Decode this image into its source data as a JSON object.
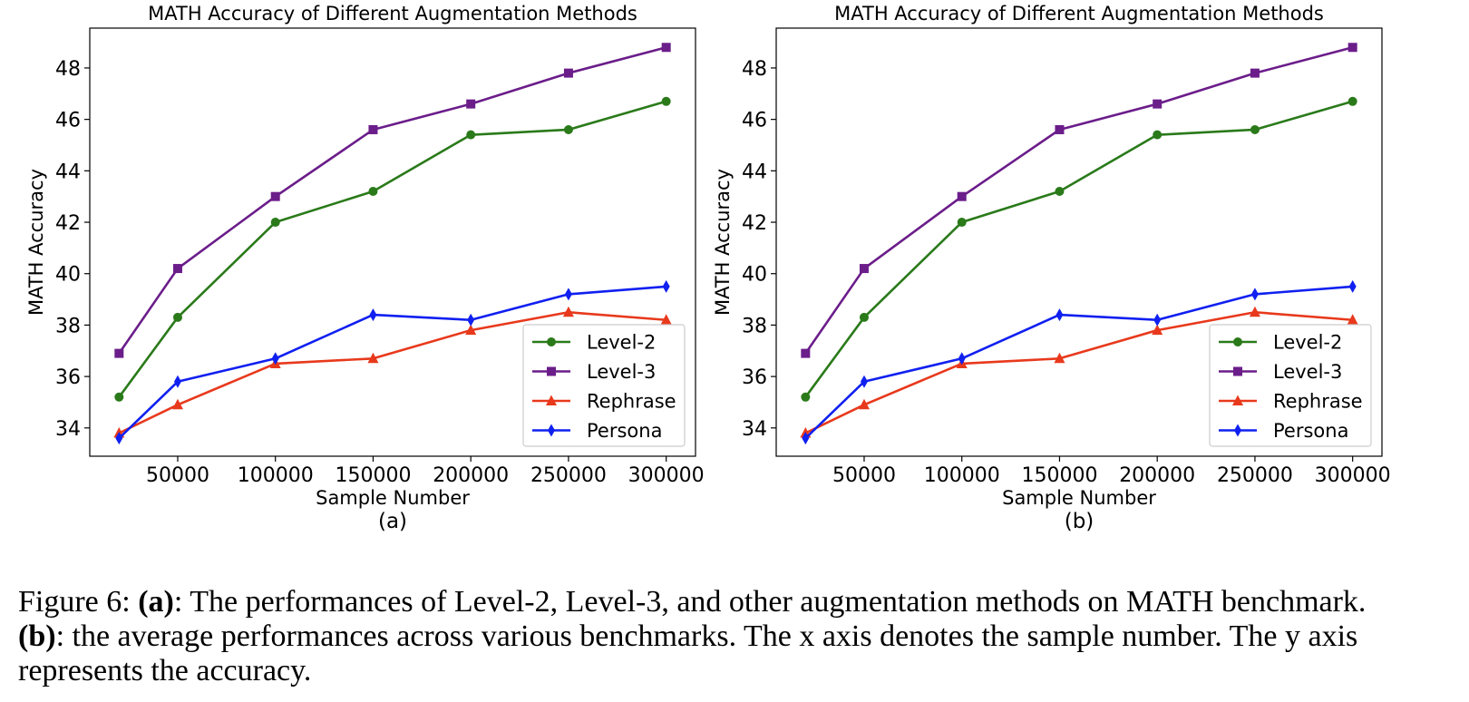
{
  "chart_data": [
    {
      "type": "line",
      "panel_label": "(a)",
      "title": "MATH Accuracy of Different Augmentation Methods",
      "xlabel": "Sample Number",
      "ylabel": "MATH Accuracy",
      "x": [
        20000,
        50000,
        100000,
        150000,
        200000,
        250000,
        300000
      ],
      "xticks": [
        50000,
        100000,
        150000,
        200000,
        250000,
        300000
      ],
      "xtick_labels": [
        "50000",
        "100000",
        "150000",
        "200000",
        "250000",
        "300000"
      ],
      "yticks": [
        34,
        36,
        38,
        40,
        42,
        44,
        46,
        48
      ],
      "ytick_labels": [
        "34",
        "36",
        "38",
        "40",
        "42",
        "44",
        "46",
        "48"
      ],
      "xlim": [
        5000,
        315000
      ],
      "ylim": [
        32.9,
        49.55
      ],
      "grid": false,
      "legend_position": "lower-right",
      "series": [
        {
          "name": "Level-2",
          "color": "#2a7a1a",
          "marker": "circle",
          "values": [
            35.2,
            38.3,
            42.0,
            43.2,
            45.4,
            45.6,
            46.7
          ]
        },
        {
          "name": "Level-3",
          "color": "#6b1d8a",
          "marker": "square",
          "values": [
            36.9,
            40.2,
            43.0,
            45.6,
            46.6,
            47.8,
            48.8
          ]
        },
        {
          "name": "Rephrase",
          "color": "#e8391c",
          "marker": "triangle",
          "values": [
            33.8,
            34.9,
            36.5,
            36.7,
            37.8,
            38.5,
            38.2
          ]
        },
        {
          "name": "Persona",
          "color": "#1020f0",
          "marker": "diamond",
          "values": [
            33.6,
            35.8,
            36.7,
            38.4,
            38.2,
            39.2,
            39.5
          ]
        }
      ]
    },
    {
      "type": "line",
      "panel_label": "(b)",
      "title": "MATH Accuracy of Different Augmentation Methods",
      "xlabel": "Sample Number",
      "ylabel": "MATH Accuracy",
      "x": [
        20000,
        50000,
        100000,
        150000,
        200000,
        250000,
        300000
      ],
      "xticks": [
        50000,
        100000,
        150000,
        200000,
        250000,
        300000
      ],
      "xtick_labels": [
        "50000",
        "100000",
        "150000",
        "200000",
        "250000",
        "300000"
      ],
      "yticks": [
        34,
        36,
        38,
        40,
        42,
        44,
        46,
        48
      ],
      "ytick_labels": [
        "34",
        "36",
        "38",
        "40",
        "42",
        "44",
        "46",
        "48"
      ],
      "xlim": [
        5000,
        315000
      ],
      "ylim": [
        32.9,
        49.55
      ],
      "grid": false,
      "legend_position": "lower-right",
      "series": [
        {
          "name": "Level-2",
          "color": "#2a7a1a",
          "marker": "circle",
          "values": [
            35.2,
            38.3,
            42.0,
            43.2,
            45.4,
            45.6,
            46.7
          ]
        },
        {
          "name": "Level-3",
          "color": "#6b1d8a",
          "marker": "square",
          "values": [
            36.9,
            40.2,
            43.0,
            45.6,
            46.6,
            47.8,
            48.8
          ]
        },
        {
          "name": "Rephrase",
          "color": "#e8391c",
          "marker": "triangle",
          "values": [
            33.8,
            34.9,
            36.5,
            36.7,
            37.8,
            38.5,
            38.2
          ]
        },
        {
          "name": "Persona",
          "color": "#1020f0",
          "marker": "diamond",
          "values": [
            33.6,
            35.8,
            36.7,
            38.4,
            38.2,
            39.2,
            39.5
          ]
        }
      ]
    }
  ],
  "caption": {
    "figure_label": "Figure 6:",
    "a_label": "(a)",
    "a_text": ": The performances of Level-2, Level-3, and other augmentation methods on MATH benchmark.",
    "b_label": "(b)",
    "b_text": ": the average performances across various benchmarks. The x axis denotes the sample number. The y axis",
    "line3": "represents the accuracy."
  }
}
